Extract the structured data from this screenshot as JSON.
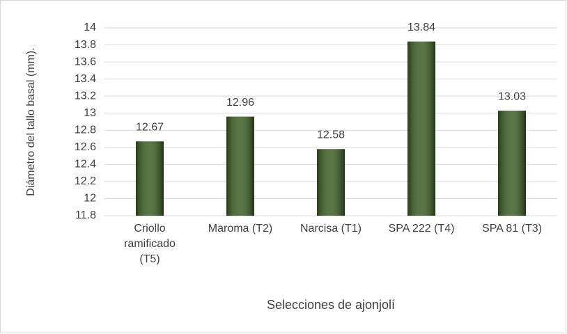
{
  "chart_data": {
    "type": "bar",
    "y_label": "Diámetro del  tallo basal (mm).",
    "x_label": "Selecciones de ajonjolí",
    "categories": [
      "Criollo ramificado (T5)",
      "Maroma (T2)",
      "Narcisa (T1)",
      "SPA 222 (T4)",
      "SPA 81 (T3)"
    ],
    "values": [
      12.67,
      12.96,
      12.58,
      13.84,
      13.03
    ],
    "color": "#3b5e23",
    "ylim": [
      11.8,
      14
    ],
    "yticks": [
      11.8,
      12,
      12.2,
      12.4,
      12.6,
      12.8,
      13,
      13.2,
      13.4,
      13.6,
      13.8,
      14
    ],
    "grid": true
  }
}
